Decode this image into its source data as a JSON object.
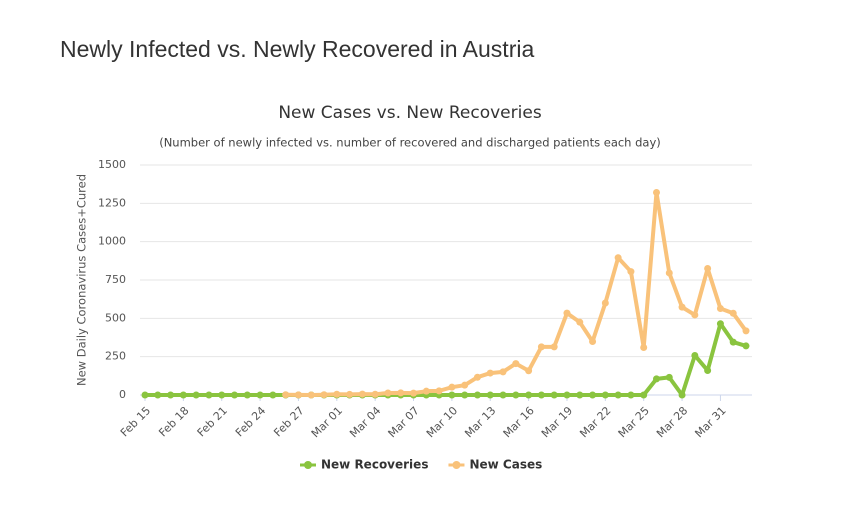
{
  "heading": "Newly Infected vs. Newly Recovered in Austria",
  "chart_data": {
    "type": "line",
    "title": "New Cases vs. New Recoveries",
    "subtitle": "(Number of newly infected vs. number of recovered and discharged patients each day)",
    "ylabel": "New Daily Coronavirus Cases+Cured",
    "categories": [
      "Feb 15",
      null,
      null,
      "Feb 18",
      null,
      null,
      "Feb 21",
      null,
      null,
      "Feb 24",
      null,
      null,
      "Feb 27",
      null,
      null,
      "Mar 01",
      null,
      null,
      "Mar 04",
      null,
      null,
      "Mar 07",
      null,
      null,
      "Mar 10",
      null,
      null,
      "Mar 13",
      null,
      null,
      "Mar 16",
      null,
      null,
      "Mar 19",
      null,
      null,
      "Mar 22",
      null,
      null,
      "Mar 25",
      null,
      null,
      "Mar 28",
      null,
      null,
      "Mar 31",
      null,
      null
    ],
    "series": [
      {
        "name": "New Recoveries",
        "color": "#8ac43f",
        "values": [
          0,
          0,
          0,
          0,
          0,
          0,
          0,
          0,
          0,
          0,
          0,
          0,
          0,
          0,
          0,
          0,
          0,
          0,
          0,
          0,
          0,
          0,
          0,
          0,
          0,
          0,
          0,
          0,
          0,
          0,
          0,
          0,
          0,
          0,
          0,
          0,
          0,
          0,
          0,
          0,
          105,
          115,
          0,
          258,
          160,
          465,
          345,
          320
        ]
      },
      {
        "name": "New Cases",
        "color": "#f9c27a",
        "values": [
          null,
          null,
          null,
          null,
          null,
          null,
          null,
          null,
          null,
          null,
          null,
          2,
          1,
          0,
          2,
          5,
          4,
          6,
          5,
          13,
          14,
          12,
          25,
          27,
          51,
          64,
          116,
          143,
          151,
          205,
          158,
          314,
          314,
          534,
          475,
          349,
          600,
          895,
          805,
          310,
          1321,
          796,
          573,
          522,
          825,
          564,
          533,
          418
        ]
      }
    ],
    "ylim": [
      0,
      1500
    ],
    "yticks": [
      0,
      250,
      500,
      750,
      1000,
      1250,
      1500
    ],
    "grid": true,
    "legend": "bottom"
  }
}
